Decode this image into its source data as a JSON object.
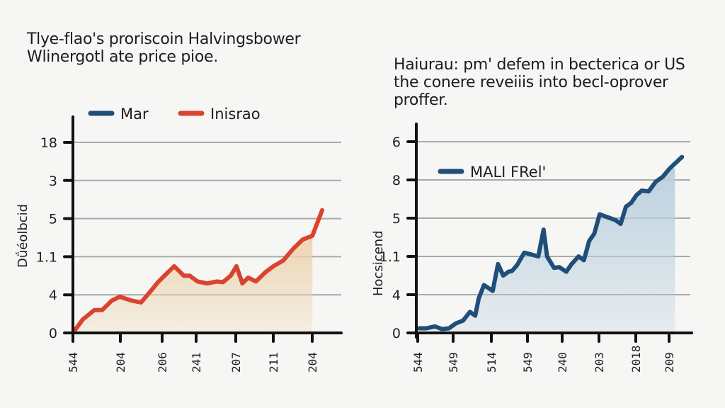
{
  "chart_data": [
    {
      "type": "line",
      "title": "Tlye-flao's proriscoin Halvingsbower Wlinergotl ate price pioe.",
      "xlabel": "",
      "ylabel": "Dǘéolbcid",
      "y_tick_labels": [
        "0",
        "4",
        "1.1",
        "5",
        "3",
        "18"
      ],
      "x_tick_labels": [
        "544",
        "204",
        "206",
        "241",
        "207",
        "211",
        "204"
      ],
      "ylim": [
        0,
        5
      ],
      "grid": true,
      "legend_position": "top",
      "legend": [
        {
          "name": "Mar",
          "color": "#1f4e79"
        },
        {
          "name": "Inisrao",
          "color": "#d9432f"
        }
      ],
      "series": [
        {
          "name": "Inisrao",
          "color": "#d9432f",
          "fill": "#ecd3ae",
          "area_end_x": 6.15,
          "x": [
            0,
            0.25,
            0.55,
            0.75,
            1.0,
            1.2,
            1.5,
            1.75,
            2.0,
            2.2,
            2.35,
            2.6,
            2.85,
            3.0,
            3.2,
            3.45,
            3.7,
            3.85,
            4.05,
            4.2,
            4.35,
            4.5,
            4.7,
            4.95,
            5.15,
            5.4,
            5.65,
            5.9,
            6.15,
            6.4
          ],
          "values": [
            0,
            0.35,
            0.6,
            0.6,
            0.85,
            0.95,
            0.85,
            0.8,
            1.1,
            1.35,
            1.5,
            1.75,
            1.5,
            1.5,
            1.35,
            1.3,
            1.35,
            1.33,
            1.5,
            1.75,
            1.3,
            1.45,
            1.35,
            1.6,
            1.75,
            1.9,
            2.2,
            2.45,
            2.55,
            3.22
          ]
        }
      ]
    },
    {
      "type": "area",
      "title": "Haiurau: pm' defem in becterica or US the conere reveiiis into becl-oprover proffer.",
      "xlabel": "",
      "ylabel": "Hocsicend",
      "y_tick_labels": [
        "0",
        "4",
        "1.1",
        "5",
        "8",
        "6"
      ],
      "x_tick_labels": [
        "544",
        "549",
        "514",
        "549",
        "240",
        "203",
        "2018",
        "209"
      ],
      "ylim": [
        0,
        5
      ],
      "grid": true,
      "legend_position": "top-left",
      "legend": [
        {
          "name": "MALI FRel'",
          "color": "#1f4e79"
        }
      ],
      "series": [
        {
          "name": "MALI FRel'",
          "color": "#1f4e79",
          "fill": "#b9cfde",
          "area_end_x": 7.3,
          "x": [
            0,
            0.2,
            0.45,
            0.65,
            0.85,
            1.05,
            1.25,
            1.45,
            1.6,
            1.7,
            1.85,
            2.1,
            2.25,
            2.4,
            2.55,
            2.65,
            2.8,
            3.0,
            3.2,
            3.4,
            3.55,
            3.65,
            3.85,
            4.0,
            4.2,
            4.35,
            4.45,
            4.55,
            4.7,
            4.85,
            5.0,
            5.15,
            5.3,
            5.45,
            5.6,
            5.75,
            5.9,
            6.05,
            6.2,
            6.35,
            6.55,
            6.75,
            6.95,
            7.15,
            7.5
          ],
          "values": [
            0.12,
            0.12,
            0.17,
            0.1,
            0.12,
            0.25,
            0.32,
            0.55,
            0.45,
            0.9,
            1.25,
            1.1,
            1.8,
            1.5,
            1.6,
            1.62,
            1.78,
            2.1,
            2.05,
            2.0,
            2.7,
            2.0,
            1.7,
            1.72,
            1.6,
            1.8,
            1.9,
            2.0,
            1.9,
            2.4,
            2.6,
            3.1,
            3.05,
            3.0,
            2.95,
            2.85,
            3.3,
            3.4,
            3.6,
            3.72,
            3.7,
            3.95,
            4.08,
            4.3,
            4.6
          ]
        }
      ]
    }
  ]
}
